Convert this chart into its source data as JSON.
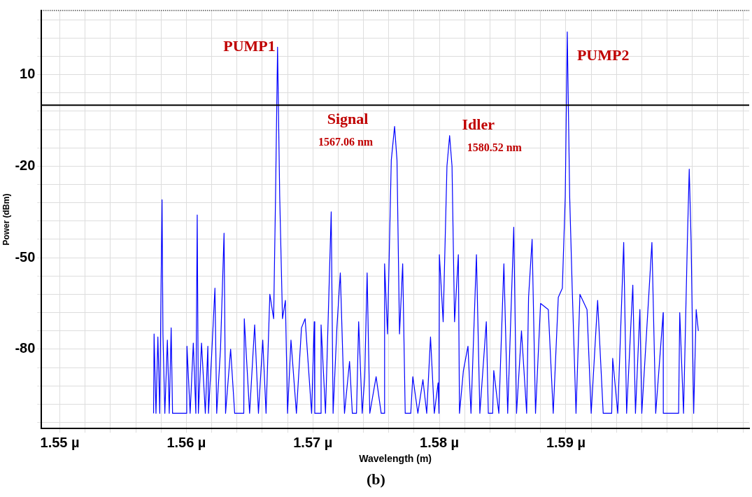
{
  "chart_data": {
    "type": "line",
    "xlabel": "Wavelength (m)",
    "ylabel": "Power (dBm)",
    "xlim": [
      1.54855,
      1.60449
    ],
    "ylim": [
      -106,
      31
    ],
    "xticks": [
      {
        "value": 1.55,
        "label": "1.55 µ"
      },
      {
        "value": 1.552,
        "label": null
      },
      {
        "value": 1.554,
        "label": null
      },
      {
        "value": 1.556,
        "label": null
      },
      {
        "value": 1.558,
        "label": null
      },
      {
        "value": 1.56,
        "label": "1.56 µ"
      },
      {
        "value": 1.562,
        "label": null
      },
      {
        "value": 1.564,
        "label": null
      },
      {
        "value": 1.566,
        "label": null
      },
      {
        "value": 1.568,
        "label": null
      },
      {
        "value": 1.57,
        "label": "1.57 µ"
      },
      {
        "value": 1.572,
        "label": null
      },
      {
        "value": 1.574,
        "label": null
      },
      {
        "value": 1.576,
        "label": null
      },
      {
        "value": 1.578,
        "label": null
      },
      {
        "value": 1.58,
        "label": "1.58 µ"
      },
      {
        "value": 1.582,
        "label": null
      },
      {
        "value": 1.584,
        "label": null
      },
      {
        "value": 1.586,
        "label": null
      },
      {
        "value": 1.588,
        "label": null
      },
      {
        "value": 1.59,
        "label": "1.59 µ"
      },
      {
        "value": 1.592,
        "label": null
      },
      {
        "value": 1.594,
        "label": null
      },
      {
        "value": 1.596,
        "label": null
      },
      {
        "value": 1.598,
        "label": null
      },
      {
        "value": 1.6,
        "label": null
      },
      {
        "value": 1.602,
        "label": null
      },
      {
        "value": 1.604,
        "label": null
      }
    ],
    "yticks": [
      {
        "value": -104,
        "label": null
      },
      {
        "value": -98,
        "label": null
      },
      {
        "value": -92,
        "label": null
      },
      {
        "value": -86,
        "label": null
      },
      -80,
      {
        "value": -74,
        "label": null
      },
      {
        "value": -68,
        "label": null
      },
      {
        "value": -62,
        "label": null
      },
      {
        "value": -56,
        "label": null
      },
      -50,
      {
        "value": -44,
        "label": null
      },
      {
        "value": -38,
        "label": null
      },
      {
        "value": -32,
        "label": null
      },
      {
        "value": -26,
        "label": null
      },
      -20,
      {
        "value": -14,
        "label": null
      },
      {
        "value": -8,
        "label": null
      },
      {
        "value": -2,
        "label": null
      },
      {
        "value": 4,
        "label": null
      },
      10,
      {
        "value": 16,
        "label": null
      },
      {
        "value": 22,
        "label": null
      },
      {
        "value": 28,
        "label": null
      }
    ],
    "grid": true,
    "ref_lines": [
      {
        "axis": "y",
        "value": 0,
        "color": "#000000"
      }
    ],
    "annotations": [
      {
        "text": "PUMP1",
        "x": 1.56721,
        "y": 19
      },
      {
        "text": "Signal",
        "x": 1.57646,
        "y": -7
      },
      {
        "text": "1567.06 nm",
        "x": 1.57646,
        "y": -7
      },
      {
        "text": "Idler",
        "x": 1.58081,
        "y": -10
      },
      {
        "text": "1580.52 nm",
        "x": 1.58081,
        "y": -10
      },
      {
        "text": "PUMP2",
        "x": 1.59011,
        "y": 24
      },
      "(b)"
    ],
    "series": [
      {
        "color": "#0000ff",
        "x": [
          1.55741,
          1.55745,
          1.5576,
          1.55775,
          1.5579,
          1.558,
          1.55808,
          1.55815,
          1.5583,
          1.5585,
          1.55865,
          1.5588,
          1.55891,
          1.56003,
          1.56005,
          1.5603,
          1.56055,
          1.56075,
          1.56086,
          1.56095,
          1.5612,
          1.5615,
          1.5617,
          1.56175,
          1.562,
          1.56226,
          1.5624,
          1.5627,
          1.56298,
          1.5631,
          1.5635,
          1.56382,
          1.56454,
          1.56458,
          1.565,
          1.5654,
          1.5657,
          1.56604,
          1.5663,
          1.5666,
          1.5669,
          1.56705,
          1.56721,
          1.56738,
          1.5676,
          1.56783,
          1.568,
          1.56827,
          1.5687,
          1.5691,
          1.56939,
          1.5699,
          1.57011,
          1.57015,
          1.57061,
          1.57065,
          1.571,
          1.57145,
          1.5716,
          1.5719,
          1.57217,
          1.5725,
          1.5729,
          1.57312,
          1.57345,
          1.57362,
          1.5739,
          1.5741,
          1.57429,
          1.5745,
          1.575,
          1.5754,
          1.57563,
          1.57567,
          1.5759,
          1.5762,
          1.57646,
          1.57665,
          1.57685,
          1.5771,
          1.5773,
          1.57774,
          1.5779,
          1.5783,
          1.5787,
          1.579,
          1.5793,
          1.5796,
          1.5799,
          1.57997,
          1.58,
          1.5803,
          1.5806,
          1.58081,
          1.581,
          1.5812,
          1.5815,
          1.58159,
          1.5819,
          1.58226,
          1.5825,
          1.58293,
          1.5832,
          1.58371,
          1.58387,
          1.58421,
          1.5843,
          1.5847,
          1.5851,
          1.5854,
          1.58588,
          1.5861,
          1.58649,
          1.5869,
          1.58705,
          1.58733,
          1.5876,
          1.588,
          1.58861,
          1.589,
          1.5894,
          1.58972,
          1.58995,
          1.59011,
          1.5903,
          1.5905,
          1.5908,
          1.59111,
          1.59167,
          1.592,
          1.59251,
          1.59295,
          1.59362,
          1.5937,
          1.5941,
          1.59457,
          1.5948,
          1.59529,
          1.5955,
          1.59585,
          1.596,
          1.5968,
          1.5971,
          1.59769,
          1.5977,
          1.59891,
          1.599,
          1.5993,
          1.5996,
          1.59975,
          1.5999,
          1.6001,
          1.6003,
          1.60047
        ],
        "values": [
          -101,
          -75,
          -101,
          -76,
          -101,
          -60,
          -31,
          -75,
          -101,
          -77,
          -101,
          -73,
          -101,
          -101,
          -79,
          -101,
          -78,
          -101,
          -36,
          -101,
          -78,
          -101,
          -79,
          -101,
          -82,
          -60,
          -101,
          -80,
          -42,
          -101,
          -80,
          -101,
          -101,
          -70,
          -101,
          -72,
          -101,
          -77,
          -101,
          -62,
          -70,
          -30,
          19,
          -30,
          -70,
          -64,
          -101,
          -77,
          -101,
          -73,
          -70,
          -101,
          -71,
          -101,
          -101,
          -72,
          -101,
          -35,
          -101,
          -73,
          -55,
          -101,
          -84,
          -101,
          -101,
          -71,
          -101,
          -89,
          -55,
          -101,
          -89,
          -101,
          -101,
          -52,
          -75,
          -18,
          -7,
          -18,
          -75,
          -52,
          -101,
          -101,
          -89,
          -101,
          -90,
          -101,
          -76,
          -101,
          -91,
          -101,
          -49,
          -71,
          -20,
          -10,
          -20,
          -71,
          -49,
          -101,
          -87,
          -79,
          -101,
          -49,
          -101,
          -71,
          -101,
          -101,
          -87,
          -101,
          -52,
          -101,
          -40,
          -101,
          -74,
          -101,
          -63,
          -44,
          -101,
          -65,
          -67,
          -101,
          -63,
          -60,
          -30,
          24,
          -30,
          -60,
          -101,
          -62,
          -67,
          -101,
          -64,
          -101,
          -101,
          -83,
          -101,
          -45,
          -101,
          -59,
          -101,
          -67,
          -101,
          -45,
          -101,
          -68,
          -101,
          -101,
          -68,
          -101,
          -45,
          -21,
          -45,
          -101,
          -67,
          -74
        ]
      }
    ]
  }
}
